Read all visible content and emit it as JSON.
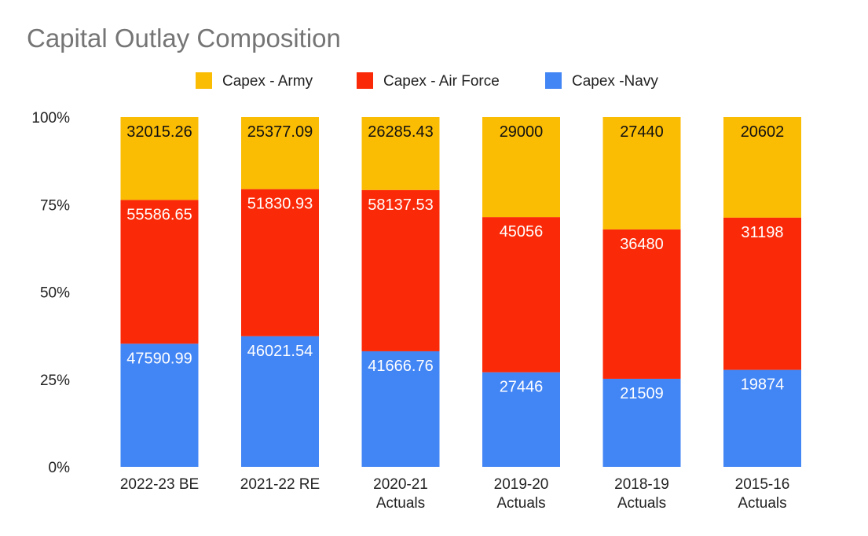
{
  "chart_data": {
    "type": "bar",
    "stacked": "percent",
    "title": "Capital Outlay Composition",
    "xlabel": "",
    "ylabel": "",
    "categories": [
      [
        "2022-23 BE"
      ],
      [
        "2021-22 RE"
      ],
      [
        "2020-21",
        "Actuals"
      ],
      [
        "2019-20",
        "Actuals"
      ],
      [
        "2018-19",
        "Actuals"
      ],
      [
        "2015-16",
        "Actuals"
      ]
    ],
    "y_ticks": [
      "0%",
      "25%",
      "50%",
      "75%",
      "100%"
    ],
    "ylim": [
      0,
      100
    ],
    "grid": false,
    "legend_position": "top",
    "series_bottom_to_top": [
      {
        "name": "Capex -Navy",
        "color": "#4285f4",
        "label_color": "#ffffff",
        "values": [
          47590.99,
          46021.54,
          41666.76,
          27446,
          21509,
          19874
        ],
        "labels": [
          "47590.99",
          "46021.54",
          "41666.76",
          "27446",
          "21509",
          "19874"
        ]
      },
      {
        "name": "Capex - Air Force",
        "color": "#fa2a08",
        "label_color": "#ffffff",
        "values": [
          55586.65,
          51830.93,
          58137.53,
          45056,
          36480,
          31198
        ],
        "labels": [
          "55586.65",
          "51830.93",
          "58137.53",
          "45056",
          "36480",
          "31198"
        ]
      },
      {
        "name": "Capex - Army",
        "color": "#fbbc04",
        "label_color": "#111111",
        "values": [
          32015.26,
          25377.09,
          26285.43,
          29000,
          27440,
          20602
        ],
        "labels": [
          "32015.26",
          "25377.09",
          "26285.43",
          "29000",
          "27440",
          "20602"
        ]
      }
    ],
    "legend_order": [
      "Capex - Army",
      "Capex - Air Force",
      "Capex -Navy"
    ]
  }
}
